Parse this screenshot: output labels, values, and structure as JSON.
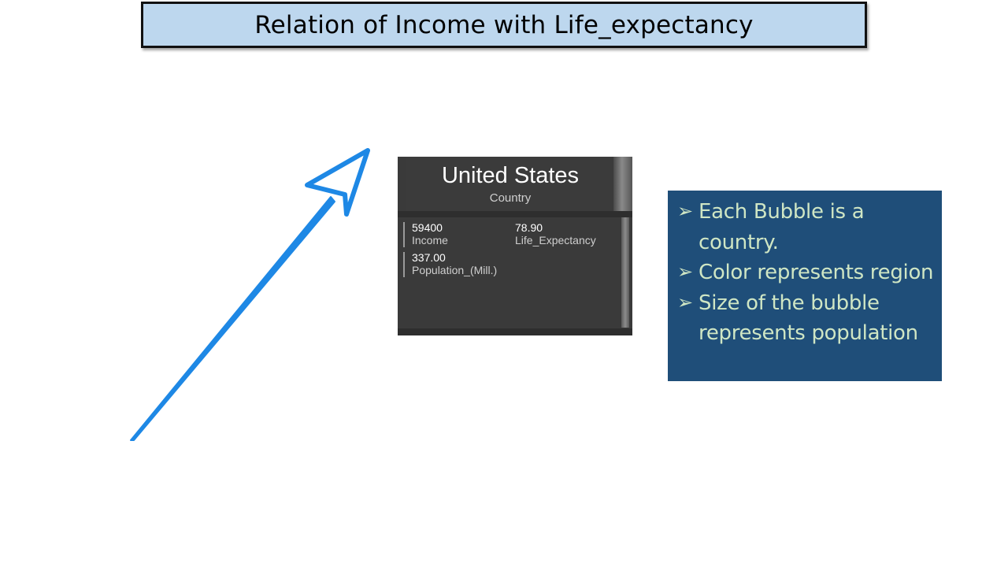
{
  "slide": {
    "title": "Relation of Income with Life_expectancy"
  },
  "tooltip": {
    "country": "United States",
    "country_label": "Country",
    "metrics": [
      {
        "value": "59400",
        "label": "Income"
      },
      {
        "value": "78.90",
        "label": "Life_Expectancy"
      },
      {
        "value": "337.00",
        "label": "Population_(Mill.)"
      }
    ]
  },
  "info_box": {
    "bullets": [
      "Each Bubble is a country.",
      "Color represents region",
      "Size of the bubble represents population"
    ]
  },
  "colors": {
    "title_fill": "#bdd7ee",
    "arrow": "#1e88e5",
    "tooltip_bg": "#3a3a3a",
    "info_bg": "#1f4e79",
    "info_text": "#cfe6c4"
  },
  "icons": {
    "arrow": "pointer-arrow-icon",
    "bullet": "arrow-bullet-icon"
  }
}
